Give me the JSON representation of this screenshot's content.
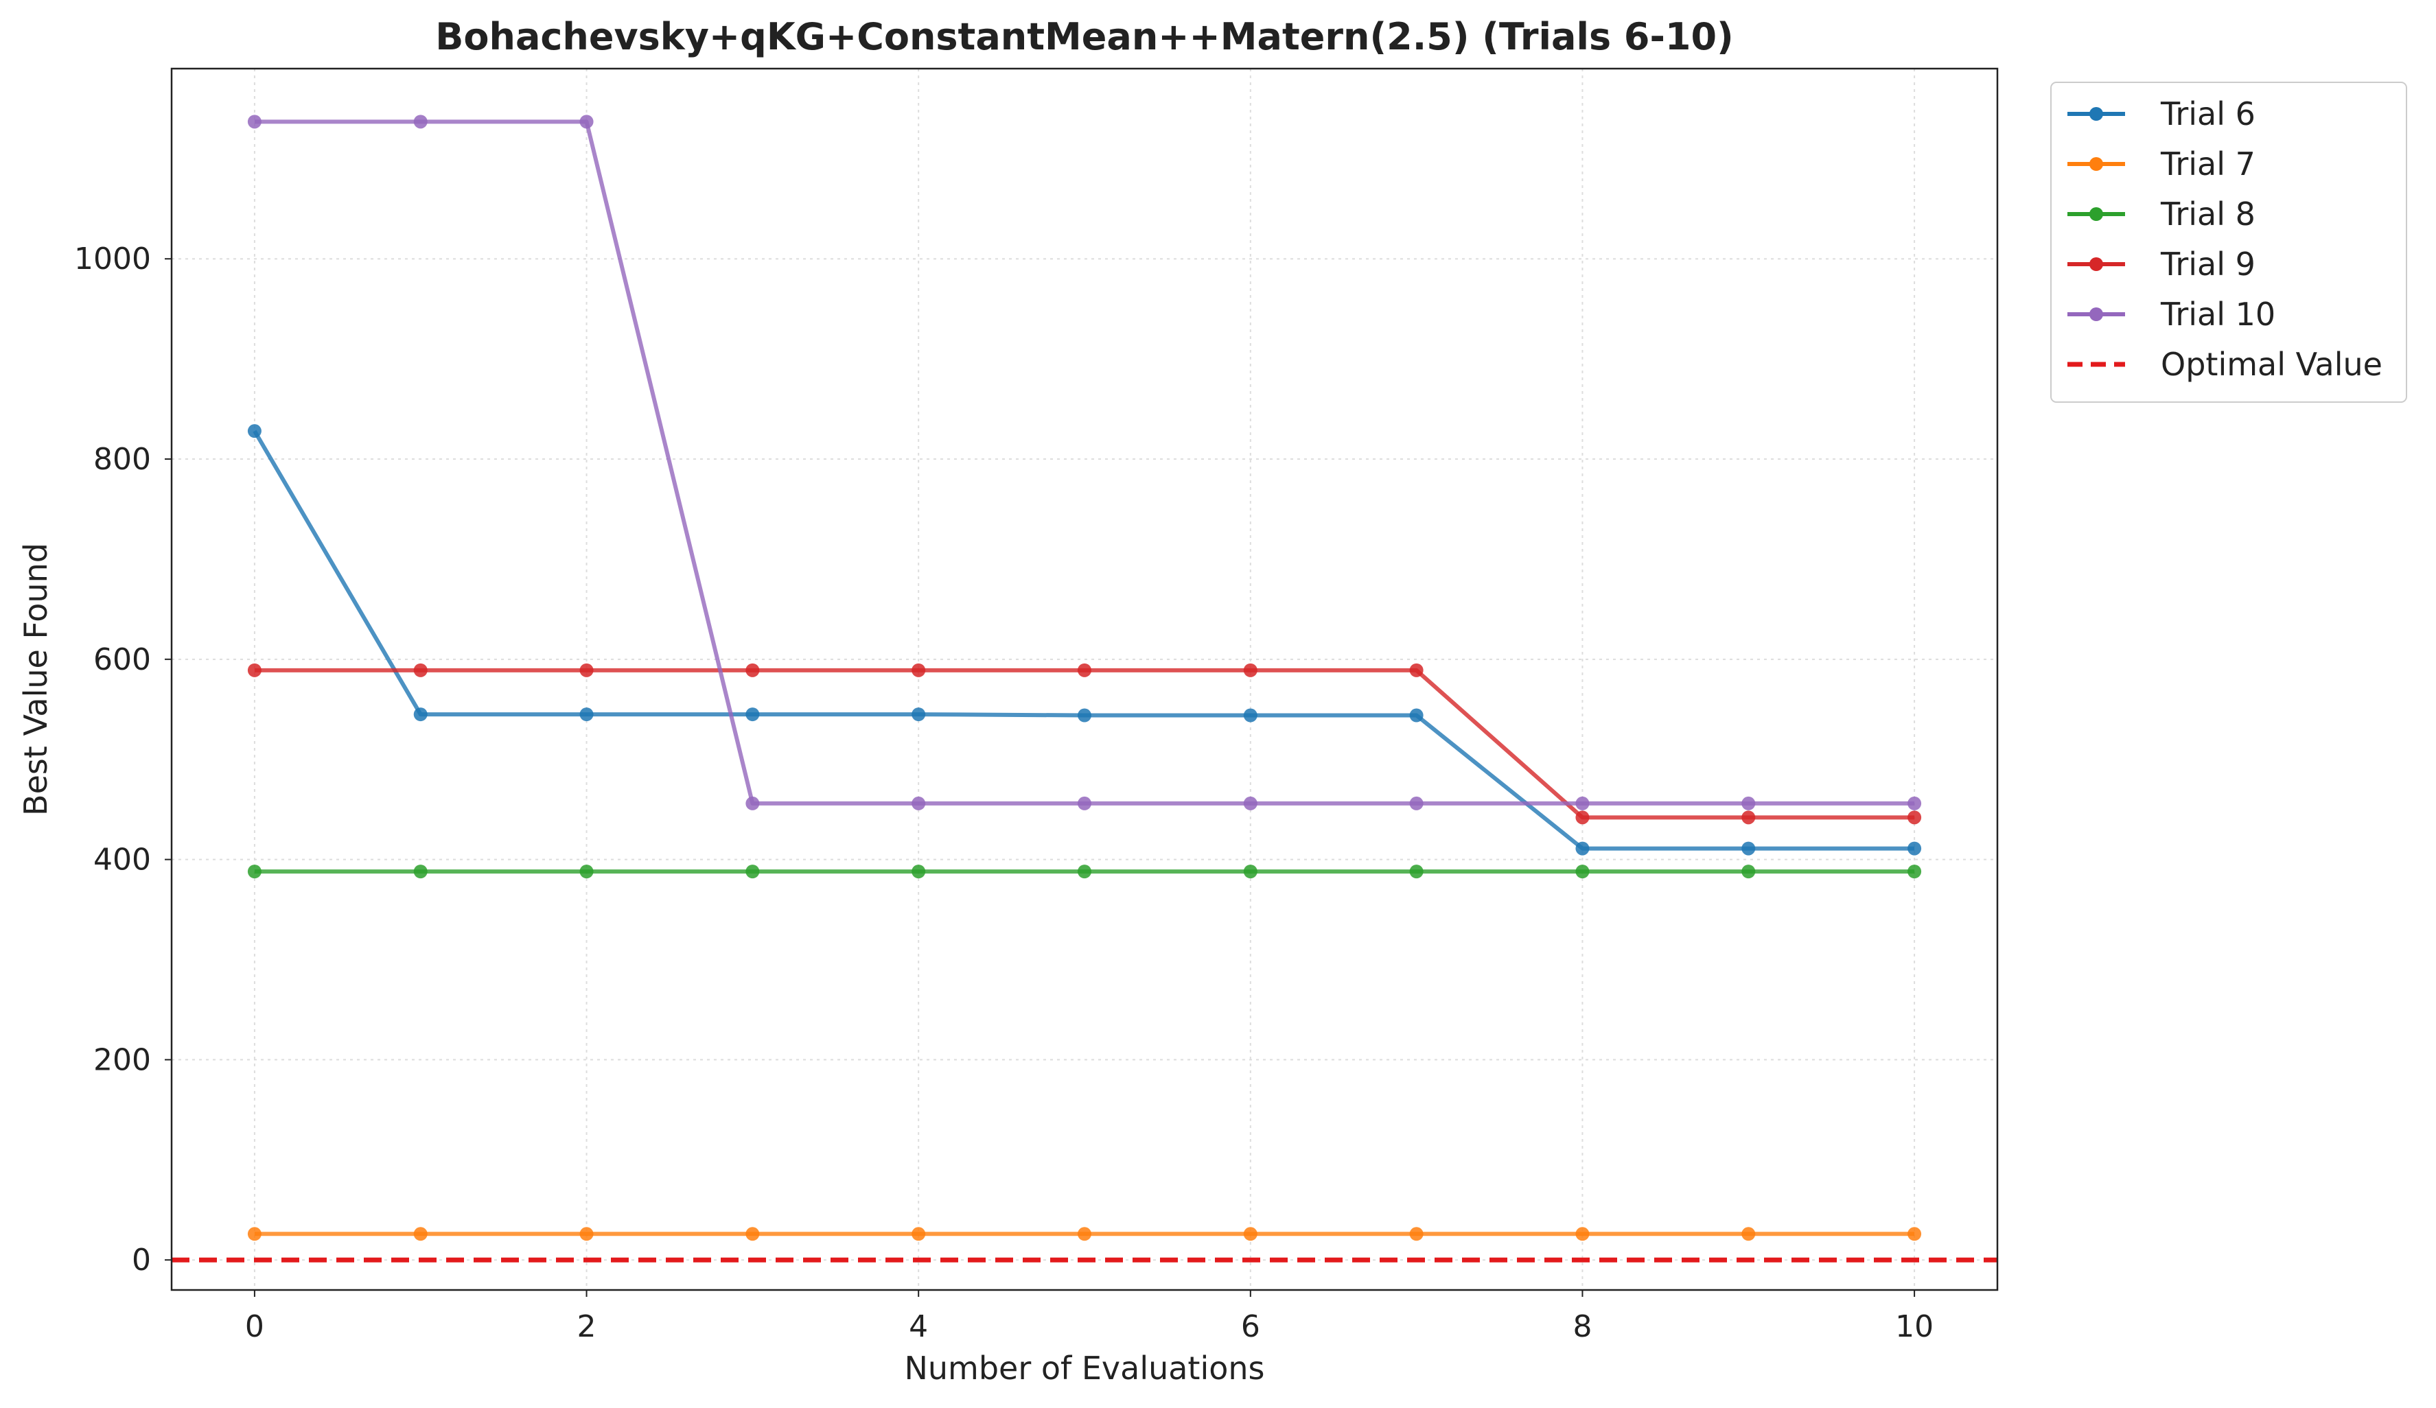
{
  "chart_data": {
    "type": "line",
    "title": "Bohachevsky+qKG+ConstantMean++Matern(2.5) (Trials 6-10)",
    "xlabel": "Number of Evaluations",
    "ylabel": "Best Value Found",
    "xlim": [
      -0.5,
      10.5
    ],
    "ylim": [
      -30,
      1190
    ],
    "xticks": [
      0,
      2,
      4,
      6,
      8,
      10
    ],
    "yticks": [
      0,
      200,
      400,
      600,
      800,
      1000
    ],
    "grid": true,
    "legend_position": "outside top-right",
    "x": [
      0,
      1,
      2,
      3,
      4,
      5,
      6,
      7,
      8,
      9,
      10
    ],
    "series": [
      {
        "name": "Trial 6",
        "color": "#1f77b4",
        "values": [
          828,
          545,
          545,
          545,
          545,
          544,
          544,
          544,
          411,
          411,
          411
        ]
      },
      {
        "name": "Trial 7",
        "color": "#ff7f0e",
        "values": [
          26,
          26,
          26,
          26,
          26,
          26,
          26,
          26,
          26,
          26,
          26
        ]
      },
      {
        "name": "Trial 8",
        "color": "#2ca02c",
        "values": [
          388,
          388,
          388,
          388,
          388,
          388,
          388,
          388,
          388,
          388,
          388
        ]
      },
      {
        "name": "Trial 9",
        "color": "#d62728",
        "values": [
          589,
          589,
          589,
          589,
          589,
          589,
          589,
          589,
          442,
          442,
          442
        ]
      },
      {
        "name": "Trial 10",
        "color": "#9467bd",
        "values": [
          1137,
          1137,
          1137,
          456,
          456,
          456,
          456,
          456,
          456,
          456,
          456
        ]
      }
    ],
    "reference_line": {
      "name": "Optimal Value",
      "y": 0,
      "color": "#e31a1c",
      "style": "dashed"
    }
  }
}
